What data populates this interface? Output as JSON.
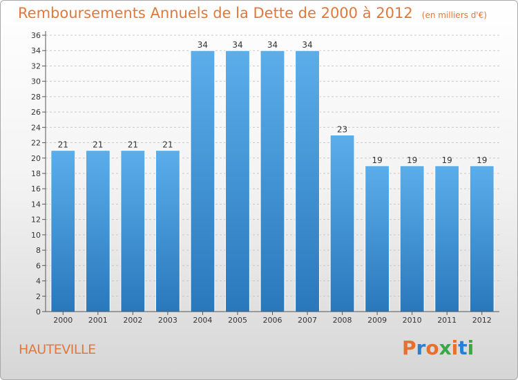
{
  "header": {
    "title": "Remboursements Annuels de la Dette de 2000 à 2012",
    "unit": "(en milliers d'€)"
  },
  "footer": {
    "commune": "HAUTEVILLE",
    "brand": "Proxiti",
    "brand_colors": [
      "#e8702a",
      "#2a7fd4",
      "#e8702a",
      "#3aa845",
      "#e8702a",
      "#2a7fd4",
      "#3aa845"
    ]
  },
  "chart_data": {
    "type": "bar",
    "categories": [
      "2000",
      "2001",
      "2002",
      "2003",
      "2004",
      "2005",
      "2006",
      "2007",
      "2008",
      "2009",
      "2010",
      "2011",
      "2012"
    ],
    "values": [
      21,
      21,
      21,
      21,
      34,
      34,
      34,
      34,
      23,
      19,
      19,
      19,
      19
    ],
    "ylim": [
      0,
      36
    ],
    "yticks": [
      0,
      2,
      4,
      6,
      8,
      10,
      12,
      14,
      16,
      18,
      20,
      22,
      24,
      26,
      28,
      30,
      32,
      34,
      36
    ],
    "grid": true,
    "colors": {
      "bar_top": "#5aaeea",
      "bar_bottom": "#2a78bc",
      "grid": "#c8c8c8",
      "axis": "#555555"
    }
  }
}
